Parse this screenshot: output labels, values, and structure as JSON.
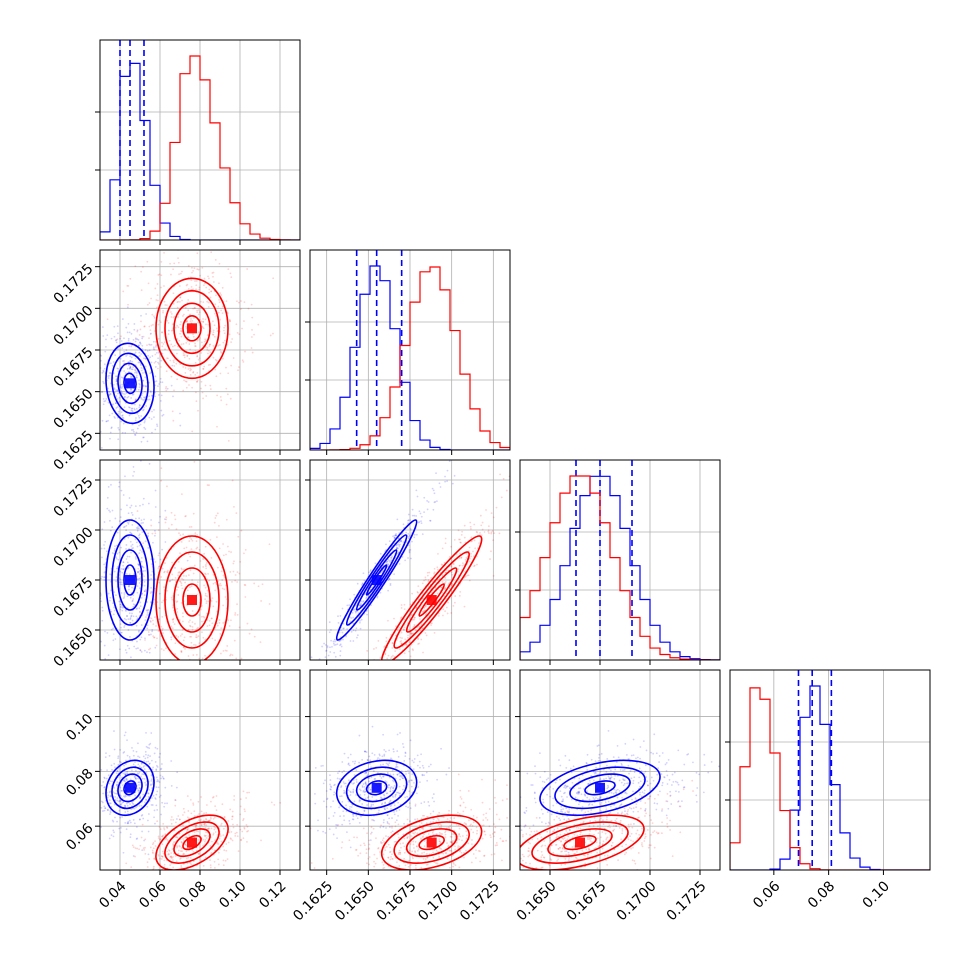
{
  "chart_data": {
    "type": "corner",
    "title": "",
    "colors": {
      "blue": "#0000ff",
      "red": "#ff0000"
    },
    "parameters": [
      {
        "index": 0,
        "range": [
          0.03,
          0.13
        ],
        "ticks": [
          "0.04",
          "0.06",
          "0.08",
          "0.10",
          "0.12"
        ]
      },
      {
        "index": 1,
        "range": [
          0.1615,
          0.1735
        ],
        "ticks": [
          "0.1625",
          "0.1650",
          "0.1675",
          "0.1700",
          "0.1725"
        ]
      },
      {
        "index": 2,
        "range": [
          0.1635,
          0.1735
        ],
        "ticks": [
          "0.1650",
          "0.1675",
          "0.1700",
          "0.1725"
        ]
      },
      {
        "index": 3,
        "range": [
          0.044,
          0.117
        ],
        "ticks": [
          "0.06",
          "0.08",
          "0.10"
        ]
      }
    ],
    "series": [
      {
        "color": "blue",
        "means": [
          0.045,
          0.1655,
          0.1675,
          0.074
        ],
        "sigmas": [
          0.006,
          0.0012,
          0.0015,
          0.005
        ],
        "quantiles": [
          [
            0.04,
            0.045,
            0.052
          ],
          [
            0.1643,
            0.1655,
            0.167
          ],
          [
            0.1663,
            0.1675,
            0.1691
          ],
          [
            0.069,
            0.074,
            0.081
          ]
        ],
        "correlations": [
          [
            0,
            1,
            -0.1
          ],
          [
            0,
            2,
            0
          ],
          [
            0,
            3,
            0.2
          ],
          [
            1,
            2,
            0.97
          ],
          [
            1,
            3,
            0.2
          ],
          [
            2,
            3,
            0.4
          ]
        ]
      },
      {
        "color": "red",
        "means": [
          0.076,
          0.1688,
          0.1665,
          0.054
        ],
        "sigmas": [
          0.009,
          0.0015,
          0.0016,
          0.005
        ],
        "quantiles": [],
        "correlations": [
          [
            0,
            1,
            0
          ],
          [
            0,
            2,
            0
          ],
          [
            0,
            3,
            0.5
          ],
          [
            1,
            2,
            0.95
          ],
          [
            1,
            3,
            0.4
          ],
          [
            2,
            3,
            0.5
          ]
        ]
      }
    ],
    "grid": true,
    "legend": "none"
  }
}
